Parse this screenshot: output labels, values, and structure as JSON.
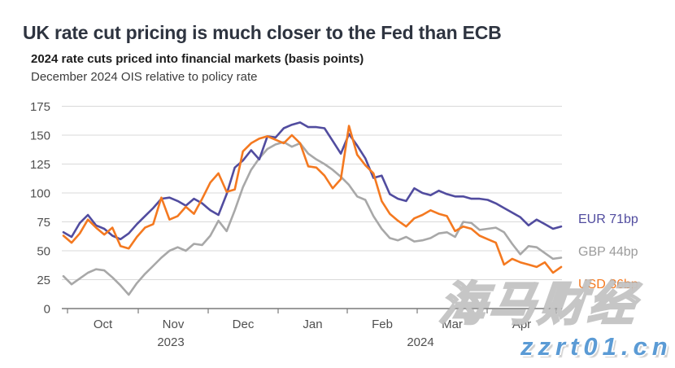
{
  "page": {
    "title": "UK rate cut pricing is much closer to the Fed than ECB",
    "subtitle_bold": "2024 rate cuts priced into financial markets (basis points)",
    "subtitle": "December 2024 OIS relative to policy rate"
  },
  "colors": {
    "title": "#2E3440",
    "eur": "#514C9F",
    "gbp": "#A8A8A8",
    "gbp_text": "#9B9B9B",
    "usd": "#F47920",
    "axis_text": "#4F4F4F",
    "gridline": "#D9D9D9",
    "axis_line": "#7A7A7A",
    "watermark_blue": "#5B9BD5"
  },
  "legend": {
    "eur": "EUR 71bp",
    "gbp": "GBP 44bp",
    "usd": "USD 36bp"
  },
  "watermark": {
    "line1": "海马财经",
    "line2": "zzrt01.cn"
  },
  "chart_data": {
    "type": "line",
    "title": "2024 rate cuts priced into financial markets (basis points)",
    "subtitle": "December 2024 OIS relative to policy rate",
    "ylabel": "basis points",
    "ylim": [
      0,
      175
    ],
    "yticks": [
      0,
      25,
      50,
      75,
      100,
      125,
      150,
      175
    ],
    "grid": true,
    "x_month_labels": [
      "Oct",
      "Nov",
      "Dec",
      "Jan",
      "Feb",
      "Mar",
      "Apr"
    ],
    "x_year_labels": [
      "2023",
      "2024"
    ],
    "legend_position": "right-of-line-ends",
    "series": [
      {
        "name": "EUR",
        "end_label": "EUR 71bp",
        "last_value": 71,
        "color": "#514C9F",
        "values": [
          66,
          62,
          74,
          81,
          72,
          69,
          63,
          60,
          65,
          73,
          80,
          87,
          95,
          96,
          93,
          89,
          95,
          91,
          85,
          81,
          99,
          122,
          128,
          137,
          129,
          149,
          148,
          156,
          159,
          161,
          157,
          157,
          156,
          145,
          134,
          151,
          141,
          130,
          113,
          115,
          99,
          95,
          93,
          104,
          100,
          98,
          102,
          99,
          97,
          97,
          95,
          95,
          94,
          91,
          87,
          83,
          79,
          72,
          77,
          73,
          69,
          71
        ]
      },
      {
        "name": "GBP",
        "end_label": "GBP 44bp",
        "last_value": 44,
        "color": "#A8A8A8",
        "values": [
          28,
          21,
          26,
          31,
          34,
          33,
          27,
          20,
          12,
          22,
          30,
          37,
          44,
          50,
          53,
          50,
          56,
          55,
          63,
          76,
          67,
          85,
          105,
          120,
          130,
          138,
          142,
          144,
          140,
          143,
          134,
          129,
          125,
          120,
          114,
          107,
          97,
          94,
          80,
          69,
          61,
          59,
          62,
          58,
          59,
          61,
          65,
          66,
          62,
          75,
          74,
          68,
          69,
          70,
          66,
          56,
          47,
          54,
          53,
          48,
          43,
          44
        ]
      },
      {
        "name": "USD",
        "end_label": "USD 36bp",
        "last_value": 36,
        "color": "#F47920",
        "values": [
          63,
          57,
          65,
          77,
          70,
          64,
          70,
          54,
          52,
          62,
          70,
          73,
          96,
          77,
          80,
          88,
          82,
          95,
          109,
          117,
          101,
          103,
          136,
          143,
          147,
          149,
          146,
          143,
          150,
          143,
          123,
          122,
          115,
          104,
          112,
          158,
          133,
          124,
          117,
          93,
          82,
          76,
          71,
          78,
          81,
          85,
          82,
          80,
          67,
          71,
          69,
          63,
          60,
          57,
          38,
          43,
          40,
          38,
          36,
          40,
          31,
          36
        ]
      }
    ]
  }
}
